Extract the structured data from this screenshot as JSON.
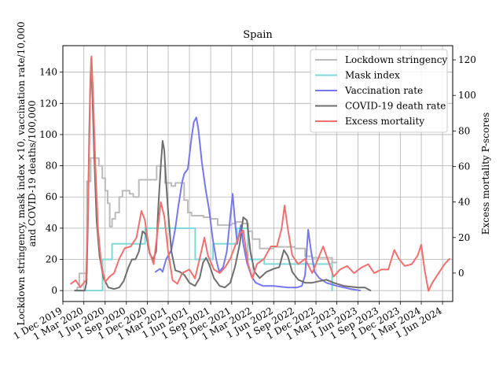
{
  "chart_data": {
    "type": "line",
    "title": "Spain",
    "ylabel_left_line1": "Lockdown stringency, mask index ×10, vaccination rate/10,000",
    "ylabel_left_line2": "and COVID-19 deaths/100,000",
    "ylabel_right": "Excess mortality P-scores",
    "ylim_left": [
      -7,
      157
    ],
    "ylim_right": [
      -16,
      128
    ],
    "xlim": [
      "2019-12-01",
      "2024-07-15"
    ],
    "grid": true,
    "legend_position": "top-right",
    "x_ticks": [
      {
        "date": "2019-12-01",
        "label": "1 Dec 2019"
      },
      {
        "date": "2020-03-01",
        "label": "1 Mar 2020"
      },
      {
        "date": "2020-06-01",
        "label": "1 Jun 2020"
      },
      {
        "date": "2020-09-01",
        "label": "1 Sep 2020"
      },
      {
        "date": "2020-12-01",
        "label": "1 Dec 2020"
      },
      {
        "date": "2021-03-01",
        "label": "1 Mar 2021"
      },
      {
        "date": "2021-06-01",
        "label": "1 Jun 2021"
      },
      {
        "date": "2021-09-01",
        "label": "1 Sep 2021"
      },
      {
        "date": "2021-12-01",
        "label": "1 Dec 2021"
      },
      {
        "date": "2022-03-01",
        "label": "1 Mar 2022"
      },
      {
        "date": "2022-06-01",
        "label": "1 Jun 2022"
      },
      {
        "date": "2022-09-01",
        "label": "1 Sep 2022"
      },
      {
        "date": "2022-12-01",
        "label": "1 Dec 2022"
      },
      {
        "date": "2023-03-01",
        "label": "1 Mar 2023"
      },
      {
        "date": "2023-06-01",
        "label": "1 Jun 2023"
      },
      {
        "date": "2023-09-01",
        "label": "1 Sep 2023"
      },
      {
        "date": "2023-12-01",
        "label": "1 Dec 2023"
      },
      {
        "date": "2024-03-01",
        "label": "1 Mar 2024"
      },
      {
        "date": "2024-06-01",
        "label": "1 Jun 2024"
      }
    ],
    "y_ticks_left": [
      0,
      20,
      40,
      60,
      80,
      100,
      120,
      140
    ],
    "y_ticks_right": [
      0,
      20,
      40,
      60,
      80,
      100,
      120
    ],
    "series": [
      {
        "name": "Lockdown stringency",
        "axis": "left",
        "color": "#bbbbbb",
        "width": 2,
        "step": true,
        "points": [
          [
            "2020-01-22",
            0
          ],
          [
            "2020-02-01",
            2
          ],
          [
            "2020-02-10",
            11
          ],
          [
            "2020-03-10",
            11
          ],
          [
            "2020-03-14",
            70
          ],
          [
            "2020-03-30",
            85
          ],
          [
            "2020-04-25",
            85
          ],
          [
            "2020-05-05",
            80
          ],
          [
            "2020-05-20",
            72
          ],
          [
            "2020-06-01",
            64
          ],
          [
            "2020-06-12",
            56
          ],
          [
            "2020-06-21",
            41
          ],
          [
            "2020-07-01",
            46
          ],
          [
            "2020-07-15",
            50
          ],
          [
            "2020-08-01",
            60
          ],
          [
            "2020-08-15",
            64
          ],
          [
            "2020-09-15",
            62
          ],
          [
            "2020-10-01",
            60
          ],
          [
            "2020-10-25",
            71
          ],
          [
            "2020-12-20",
            71
          ],
          [
            "2021-01-10",
            80
          ],
          [
            "2021-02-01",
            80
          ],
          [
            "2021-02-15",
            69
          ],
          [
            "2021-03-15",
            67
          ],
          [
            "2021-04-01",
            69
          ],
          [
            "2021-05-09",
            58
          ],
          [
            "2021-05-25",
            50
          ],
          [
            "2021-06-10",
            48
          ],
          [
            "2021-07-01",
            48
          ],
          [
            "2021-08-01",
            47
          ],
          [
            "2021-09-01",
            46
          ],
          [
            "2021-10-01",
            42
          ],
          [
            "2021-12-01",
            43
          ],
          [
            "2021-12-20",
            44
          ],
          [
            "2022-01-15",
            43
          ],
          [
            "2022-02-10",
            38
          ],
          [
            "2022-03-01",
            33
          ],
          [
            "2022-04-01",
            27
          ],
          [
            "2022-05-01",
            27
          ],
          [
            "2022-06-01",
            28
          ],
          [
            "2022-07-15",
            28
          ],
          [
            "2022-09-01",
            27
          ],
          [
            "2022-10-15",
            22
          ],
          [
            "2022-11-15",
            21
          ],
          [
            "2023-01-01",
            21
          ],
          [
            "2023-02-08",
            21
          ],
          [
            "2023-02-09",
            18
          ],
          [
            "2023-03-01",
            18
          ]
        ]
      },
      {
        "name": "Mask index",
        "axis": "left",
        "color": "#7fd8d8",
        "width": 2,
        "step": true,
        "points": [
          [
            "2020-01-22",
            0
          ],
          [
            "2020-05-20",
            0
          ],
          [
            "2020-05-21",
            20
          ],
          [
            "2020-07-01",
            30
          ],
          [
            "2020-11-20",
            30
          ],
          [
            "2020-11-21",
            40
          ],
          [
            "2021-06-25",
            40
          ],
          [
            "2021-06-26",
            20
          ],
          [
            "2021-09-10",
            20
          ],
          [
            "2021-09-11",
            30
          ],
          [
            "2021-12-23",
            30
          ],
          [
            "2021-12-24",
            40
          ],
          [
            "2022-02-08",
            40
          ],
          [
            "2022-02-09",
            20
          ],
          [
            "2022-04-20",
            20
          ],
          [
            "2022-04-21",
            17
          ],
          [
            "2023-02-08",
            17
          ],
          [
            "2023-02-09",
            0
          ]
        ]
      },
      {
        "name": "Vaccination rate",
        "axis": "left",
        "color": "#7777ee",
        "width": 2,
        "step": false,
        "points": [
          [
            "2021-01-05",
            12
          ],
          [
            "2021-01-25",
            14
          ],
          [
            "2021-02-05",
            12
          ],
          [
            "2021-02-20",
            20
          ],
          [
            "2021-03-15",
            26
          ],
          [
            "2021-04-01",
            40
          ],
          [
            "2021-04-15",
            55
          ],
          [
            "2021-05-01",
            70
          ],
          [
            "2021-05-10",
            75
          ],
          [
            "2021-05-25",
            78
          ],
          [
            "2021-06-10",
            98
          ],
          [
            "2021-06-20",
            108
          ],
          [
            "2021-07-01",
            111
          ],
          [
            "2021-07-10",
            103
          ],
          [
            "2021-07-25",
            82
          ],
          [
            "2021-08-10",
            65
          ],
          [
            "2021-08-25",
            52
          ],
          [
            "2021-09-10",
            33
          ],
          [
            "2021-09-25",
            20
          ],
          [
            "2021-10-08",
            12
          ],
          [
            "2021-10-25",
            15
          ],
          [
            "2021-11-10",
            25
          ],
          [
            "2021-11-25",
            47
          ],
          [
            "2021-12-05",
            62
          ],
          [
            "2021-12-15",
            45
          ],
          [
            "2021-12-25",
            30
          ],
          [
            "2022-01-10",
            42
          ],
          [
            "2022-01-20",
            30
          ],
          [
            "2022-02-05",
            18
          ],
          [
            "2022-02-25",
            9
          ],
          [
            "2022-03-15",
            5
          ],
          [
            "2022-04-15",
            3
          ],
          [
            "2022-06-01",
            3
          ],
          [
            "2022-08-01",
            2
          ],
          [
            "2022-09-10",
            2
          ],
          [
            "2022-10-01",
            3
          ],
          [
            "2022-10-15",
            10
          ],
          [
            "2022-10-28",
            39
          ],
          [
            "2022-11-10",
            25
          ],
          [
            "2022-11-25",
            12
          ],
          [
            "2022-12-15",
            8
          ],
          [
            "2023-01-15",
            5
          ],
          [
            "2023-03-01",
            3
          ],
          [
            "2023-05-01",
            1
          ],
          [
            "2023-06-10",
            0
          ]
        ]
      },
      {
        "name": "COVID-19 death rate",
        "axis": "left",
        "color": "#6e6e6e",
        "width": 2,
        "step": false,
        "points": [
          [
            "2020-01-22",
            0
          ],
          [
            "2020-03-05",
            0
          ],
          [
            "2020-03-12",
            5
          ],
          [
            "2020-03-18",
            40
          ],
          [
            "2020-03-24",
            100
          ],
          [
            "2020-03-29",
            135
          ],
          [
            "2020-04-02",
            149
          ],
          [
            "2020-04-07",
            125
          ],
          [
            "2020-04-15",
            85
          ],
          [
            "2020-04-25",
            45
          ],
          [
            "2020-05-08",
            22
          ],
          [
            "2020-05-25",
            8
          ],
          [
            "2020-06-15",
            2
          ],
          [
            "2020-07-10",
            1
          ],
          [
            "2020-08-01",
            2
          ],
          [
            "2020-08-20",
            6
          ],
          [
            "2020-09-10",
            15
          ],
          [
            "2020-09-25",
            20
          ],
          [
            "2020-10-10",
            20
          ],
          [
            "2020-10-25",
            25
          ],
          [
            "2020-11-10",
            38
          ],
          [
            "2020-11-25",
            36
          ],
          [
            "2020-12-10",
            24
          ],
          [
            "2020-12-25",
            20
          ],
          [
            "2021-01-08",
            25
          ],
          [
            "2021-01-18",
            55
          ],
          [
            "2021-01-28",
            80
          ],
          [
            "2021-02-05",
            96
          ],
          [
            "2021-02-12",
            90
          ],
          [
            "2021-02-20",
            70
          ],
          [
            "2021-03-01",
            50
          ],
          [
            "2021-03-15",
            25
          ],
          [
            "2021-04-01",
            13
          ],
          [
            "2021-04-20",
            12
          ],
          [
            "2021-05-10",
            10
          ],
          [
            "2021-06-01",
            5
          ],
          [
            "2021-06-25",
            3
          ],
          [
            "2021-07-15",
            8
          ],
          [
            "2021-07-30",
            18
          ],
          [
            "2021-08-12",
            21
          ],
          [
            "2021-08-25",
            17
          ],
          [
            "2021-09-15",
            8
          ],
          [
            "2021-10-10",
            3
          ],
          [
            "2021-11-01",
            2
          ],
          [
            "2021-11-25",
            5
          ],
          [
            "2021-12-15",
            15
          ],
          [
            "2022-01-05",
            30
          ],
          [
            "2022-01-20",
            47
          ],
          [
            "2022-02-05",
            45
          ],
          [
            "2022-02-20",
            25
          ],
          [
            "2022-03-10",
            12
          ],
          [
            "2022-04-01",
            8
          ],
          [
            "2022-05-01",
            12
          ],
          [
            "2022-06-01",
            14
          ],
          [
            "2022-06-25",
            15
          ],
          [
            "2022-07-15",
            26
          ],
          [
            "2022-08-01",
            22
          ],
          [
            "2022-08-20",
            12
          ],
          [
            "2022-09-15",
            7
          ],
          [
            "2022-10-15",
            5
          ],
          [
            "2022-11-15",
            5
          ],
          [
            "2022-12-15",
            6
          ],
          [
            "2023-01-15",
            7
          ],
          [
            "2023-02-15",
            5
          ],
          [
            "2023-04-01",
            3
          ],
          [
            "2023-06-01",
            2
          ],
          [
            "2023-07-01",
            2
          ],
          [
            "2023-07-25",
            0
          ]
        ]
      },
      {
        "name": "Excess mortality",
        "axis": "right",
        "color": "#f07070",
        "width": 2,
        "step": false,
        "points": [
          [
            "2020-01-05",
            -6
          ],
          [
            "2020-01-25",
            -4
          ],
          [
            "2020-02-15",
            -8
          ],
          [
            "2020-03-10",
            -4
          ],
          [
            "2020-03-20",
            40
          ],
          [
            "2020-03-28",
            100
          ],
          [
            "2020-04-03",
            122
          ],
          [
            "2020-04-10",
            100
          ],
          [
            "2020-04-20",
            60
          ],
          [
            "2020-05-01",
            25
          ],
          [
            "2020-05-15",
            5
          ],
          [
            "2020-06-01",
            -5
          ],
          [
            "2020-06-20",
            -2
          ],
          [
            "2020-07-10",
            0
          ],
          [
            "2020-08-01",
            8
          ],
          [
            "2020-08-25",
            14
          ],
          [
            "2020-09-20",
            15
          ],
          [
            "2020-10-15",
            20
          ],
          [
            "2020-11-05",
            35
          ],
          [
            "2020-11-20",
            30
          ],
          [
            "2020-12-10",
            12
          ],
          [
            "2020-12-28",
            5
          ],
          [
            "2021-01-15",
            25
          ],
          [
            "2021-01-28",
            40
          ],
          [
            "2021-02-12",
            32
          ],
          [
            "2021-03-01",
            12
          ],
          [
            "2021-03-20",
            -4
          ],
          [
            "2021-04-10",
            -6
          ],
          [
            "2021-05-01",
            0
          ],
          [
            "2021-06-01",
            2
          ],
          [
            "2021-06-25",
            -3
          ],
          [
            "2021-07-15",
            8
          ],
          [
            "2021-08-05",
            20
          ],
          [
            "2021-08-20",
            10
          ],
          [
            "2021-09-15",
            2
          ],
          [
            "2021-10-10",
            0
          ],
          [
            "2021-11-01",
            3
          ],
          [
            "2021-11-25",
            8
          ],
          [
            "2021-12-15",
            15
          ],
          [
            "2022-01-05",
            22
          ],
          [
            "2022-01-20",
            24
          ],
          [
            "2022-02-10",
            5
          ],
          [
            "2022-03-01",
            -3
          ],
          [
            "2022-03-20",
            5
          ],
          [
            "2022-04-20",
            8
          ],
          [
            "2022-05-20",
            15
          ],
          [
            "2022-06-15",
            15
          ],
          [
            "2022-07-05",
            25
          ],
          [
            "2022-07-18",
            38
          ],
          [
            "2022-08-01",
            25
          ],
          [
            "2022-08-20",
            10
          ],
          [
            "2022-09-15",
            5
          ],
          [
            "2022-10-15",
            8
          ],
          [
            "2022-11-15",
            0
          ],
          [
            "2022-12-10",
            8
          ],
          [
            "2023-01-01",
            15
          ],
          [
            "2023-01-20",
            8
          ],
          [
            "2023-02-15",
            -2
          ],
          [
            "2023-03-15",
            2
          ],
          [
            "2023-04-15",
            4
          ],
          [
            "2023-05-15",
            0
          ],
          [
            "2023-06-15",
            3
          ],
          [
            "2023-07-15",
            5
          ],
          [
            "2023-08-10",
            0
          ],
          [
            "2023-09-10",
            2
          ],
          [
            "2023-10-10",
            2
          ],
          [
            "2023-11-05",
            13
          ],
          [
            "2023-11-25",
            8
          ],
          [
            "2023-12-20",
            4
          ],
          [
            "2024-01-20",
            5
          ],
          [
            "2024-02-15",
            10
          ],
          [
            "2024-03-01",
            16
          ],
          [
            "2024-03-15",
            2
          ],
          [
            "2024-04-01",
            -10
          ],
          [
            "2024-04-20",
            -5
          ],
          [
            "2024-05-15",
            0
          ],
          [
            "2024-06-10",
            5
          ],
          [
            "2024-07-01",
            8
          ]
        ]
      }
    ]
  }
}
